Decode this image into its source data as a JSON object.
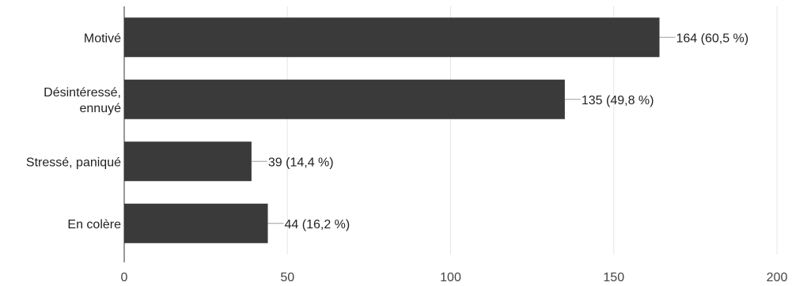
{
  "chart_data": {
    "type": "bar",
    "orientation": "horizontal",
    "title": "",
    "xlabel": "",
    "ylabel": "",
    "categories": [
      [
        "Motivé"
      ],
      [
        "Désintéressé,",
        "ennuyé"
      ],
      [
        "Stressé, paniqué"
      ],
      [
        "En colère"
      ]
    ],
    "values": [
      164,
      135,
      39,
      44
    ],
    "data_labels": [
      "164 (60,5 %)",
      "135 (49,8 %)",
      "39 (14,4 %)",
      "44 (16,2 %)"
    ],
    "xlim": [
      0,
      200
    ],
    "x_ticks": [
      "0",
      "50",
      "100",
      "150",
      "200"
    ],
    "x_tick_values": [
      0,
      50,
      100,
      150,
      200
    ],
    "grid": true,
    "legend": "none",
    "colors": {
      "bar": "#3a3a3a",
      "grid": "#e5e5e5",
      "axis": "#333333",
      "leader": "#9e9e9e"
    }
  }
}
